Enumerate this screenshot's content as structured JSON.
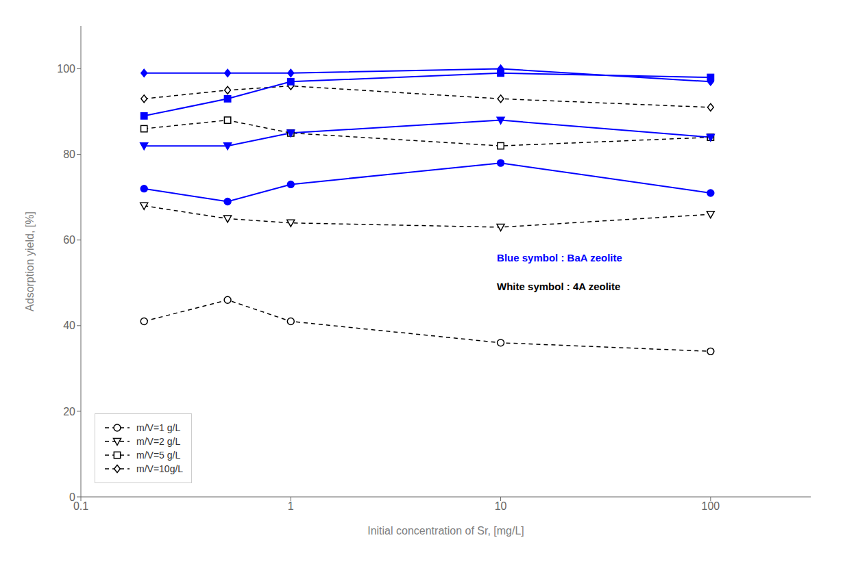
{
  "chart_data": {
    "type": "line",
    "x": [
      0.2,
      0.5,
      1,
      10,
      100
    ],
    "xlabel": "Initial concentration of Sr, [mg/L]",
    "ylabel": "Adsorption yield, [%]",
    "xlim": [
      0.1,
      300
    ],
    "xticks": [
      0.1,
      1,
      10,
      100
    ],
    "ylim": [
      0,
      110
    ],
    "yticks": [
      0,
      20,
      40,
      60,
      80,
      100
    ],
    "log": "x",
    "grid": false,
    "legend": "lower left",
    "annotations": [
      {
        "text": "Blue symbol : BaA zeolite",
        "color": "#0000FF"
      },
      {
        "text": "White symbol : 4A zeolite",
        "color": "#000000"
      }
    ],
    "series": [
      {
        "name": "m/V=1 g/L",
        "color": "#000000",
        "marker": "open circle",
        "line_style": "dashed",
        "values": [
          41,
          46,
          41,
          36,
          34
        ]
      },
      {
        "name": "m/V=2 g/L",
        "color": "#000000",
        "marker": "open triangle-down",
        "line_style": "dashed",
        "values": [
          68,
          65,
          64,
          63,
          66
        ]
      },
      {
        "name": "m/V=5 g/L",
        "color": "#000000",
        "marker": "open square",
        "line_style": "dashed",
        "values": [
          86,
          88,
          85,
          82,
          84
        ]
      },
      {
        "name": "m/V=10g/L",
        "color": "#000000",
        "marker": "open diamond",
        "line_style": "dashed",
        "values": [
          93,
          95,
          96,
          93,
          91
        ]
      },
      {
        "color": "#0000FF",
        "marker": "filled circle",
        "line_style": "solid",
        "values": [
          72,
          69,
          73,
          78,
          71
        ]
      },
      {
        "color": "#0000FF",
        "marker": "filled triangle-down",
        "line_style": "solid",
        "values": [
          82,
          82,
          85,
          88,
          84
        ]
      },
      {
        "color": "#0000FF",
        "marker": "filled square",
        "line_style": "solid",
        "values": [
          89,
          93,
          97,
          99,
          98
        ]
      },
      {
        "color": "#0000FF",
        "marker": "filled diamond",
        "line_style": "solid",
        "values": [
          99,
          99,
          99,
          100,
          97
        ]
      }
    ]
  }
}
